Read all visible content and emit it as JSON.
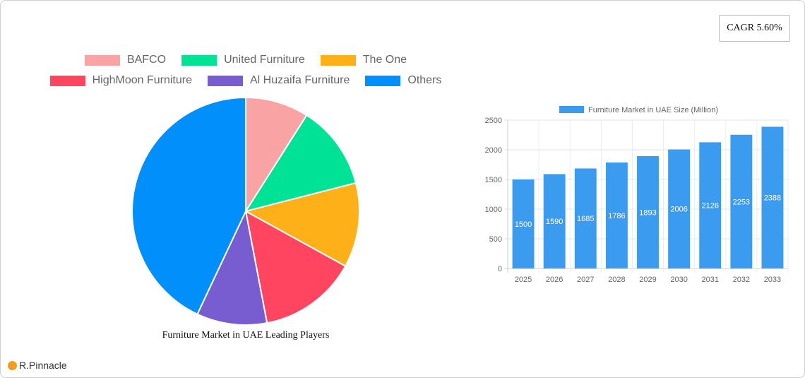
{
  "cagr": "CAGR 5.60%",
  "brand": "R.Pinnacle",
  "chart_data": [
    {
      "type": "pie",
      "title": "Furniture Market in UAE Leading Players",
      "legend_placement": "top",
      "slices": [
        {
          "label": "BAFCO",
          "value": 9,
          "color": "#f9a3a4"
        },
        {
          "label": "United Furniture",
          "value": 12,
          "color": "#00e396"
        },
        {
          "label": "The One",
          "value": 12,
          "color": "#feb019"
        },
        {
          "label": "HighMoon Furniture",
          "value": 14,
          "color": "#ff4560"
        },
        {
          "label": "Al Huzaifa Furniture",
          "value": 10,
          "color": "#775dd0"
        },
        {
          "label": "Others",
          "value": 43,
          "color": "#008ffb"
        }
      ]
    },
    {
      "type": "bar",
      "legend": "Furniture Market in UAE Size (Million)",
      "legend_placement": "top",
      "color": "#3a9bef",
      "categories": [
        "2025",
        "2026",
        "2027",
        "2028",
        "2029",
        "2030",
        "2031",
        "2032",
        "2033"
      ],
      "values": [
        1500,
        1590,
        1685,
        1786,
        1893,
        2006,
        2126,
        2253,
        2388
      ],
      "ylim": [
        0,
        2500
      ],
      "yticks": [
        0,
        500,
        1000,
        1500,
        2000,
        2500
      ],
      "grid": true
    }
  ]
}
